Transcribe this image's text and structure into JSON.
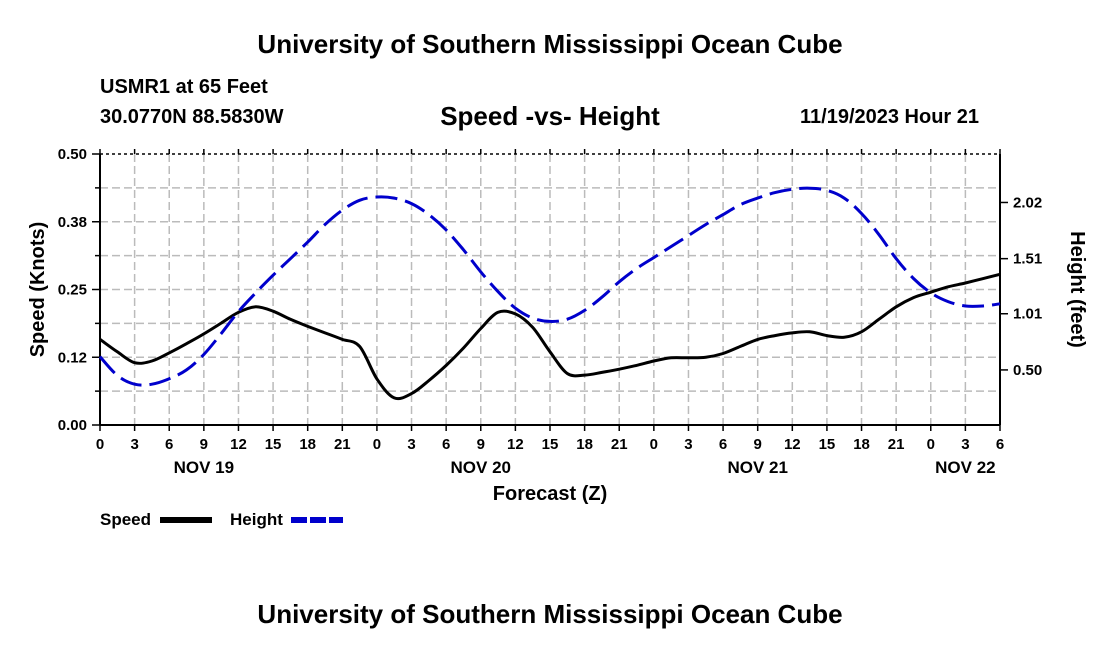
{
  "page": {
    "title": "University of Southern Mississippi Ocean Cube",
    "footer_title": "University of Southern Mississippi Ocean Cube",
    "station": "USMR1 at 65 Feet",
    "coordinates": "30.0770N  88.5830W",
    "subtitle": "Speed -vs- Height",
    "datetime": "11/19/2023 Hour 21"
  },
  "chart_data": {
    "type": "line",
    "title": "Speed -vs- Height",
    "xlabel": "Forecast (Z)",
    "ylabel_left": "Speed (Knots)",
    "ylabel_right": "Height (feet)",
    "x_unit": "hours since NOV 19 00Z",
    "xlim": [
      0,
      78
    ],
    "ylim_left": [
      0,
      0.5
    ],
    "ylim_right": [
      0.0,
      2.46
    ],
    "x_ticks": [
      0,
      3,
      6,
      9,
      12,
      15,
      18,
      21,
      24,
      27,
      30,
      33,
      36,
      39,
      42,
      45,
      48,
      51,
      54,
      57,
      60,
      63,
      66,
      69,
      72,
      75,
      78
    ],
    "x_tick_labels": [
      "0",
      "3",
      "6",
      "9",
      "12",
      "15",
      "18",
      "21",
      "0",
      "3",
      "6",
      "9",
      "12",
      "15",
      "18",
      "21",
      "0",
      "3",
      "6",
      "9",
      "12",
      "15",
      "18",
      "21",
      "0",
      "3",
      "6"
    ],
    "left_ticks": [
      0.0,
      0.125,
      0.25,
      0.375,
      0.5
    ],
    "left_tick_labels": [
      "0.00",
      "0.12",
      "0.25",
      "0.38",
      "0.50"
    ],
    "right_ticks": [
      0.5,
      1.01,
      1.51,
      2.02
    ],
    "right_tick_labels": [
      "0.50",
      "1.01",
      "1.51",
      "2.02"
    ],
    "date_labels": [
      {
        "x": 9,
        "label": "NOV 19"
      },
      {
        "x": 33,
        "label": "NOV 20"
      },
      {
        "x": 57,
        "label": "NOV 21"
      },
      {
        "x": 75,
        "label": "NOV 22"
      }
    ],
    "grid": true,
    "legend_position": "bottom-left",
    "series": [
      {
        "name": "Speed",
        "axis": "left",
        "color": "#000000",
        "style": "solid",
        "x": [
          0,
          1.5,
          3,
          4.5,
          6,
          7.5,
          9,
          10.5,
          12,
          13.5,
          15,
          16.5,
          18,
          19.5,
          21,
          22.5,
          24,
          25.5,
          27,
          28.5,
          30,
          31.5,
          33,
          34.5,
          36,
          37.5,
          39,
          40.5,
          42,
          43.5,
          45,
          46.5,
          48,
          49.5,
          51,
          52.5,
          54,
          55.5,
          57,
          58.5,
          60,
          61.5,
          63,
          64.5,
          66,
          67.5,
          69,
          70.5,
          72,
          73.5,
          75,
          76.5,
          78
        ],
        "values": [
          0.158,
          0.135,
          0.115,
          0.118,
          0.133,
          0.15,
          0.168,
          0.188,
          0.208,
          0.218,
          0.21,
          0.195,
          0.182,
          0.17,
          0.158,
          0.145,
          0.085,
          0.05,
          0.058,
          0.082,
          0.11,
          0.142,
          0.178,
          0.208,
          0.205,
          0.18,
          0.135,
          0.095,
          0.092,
          0.097,
          0.103,
          0.11,
          0.118,
          0.124,
          0.124,
          0.125,
          0.132,
          0.145,
          0.158,
          0.165,
          0.17,
          0.172,
          0.165,
          0.162,
          0.172,
          0.195,
          0.218,
          0.235,
          0.245,
          0.255,
          0.262,
          0.27,
          0.278
        ]
      },
      {
        "name": "Height",
        "axis": "right",
        "color": "#0000cc",
        "style": "dashed",
        "x": [
          0,
          1.5,
          3,
          4.5,
          6,
          7.5,
          9,
          10.5,
          12,
          13.5,
          15,
          16.5,
          18,
          19.5,
          21,
          22.5,
          24,
          25.5,
          27,
          28.5,
          30,
          31.5,
          33,
          34.5,
          36,
          37.5,
          39,
          40.5,
          42,
          43.5,
          45,
          46.5,
          48,
          49.5,
          51,
          52.5,
          54,
          55.5,
          57,
          58.5,
          60,
          61.5,
          63,
          64.5,
          66,
          67.5,
          69,
          70.5,
          72,
          73.5,
          75,
          76.5,
          78
        ],
        "values": [
          0.62,
          0.45,
          0.37,
          0.37,
          0.42,
          0.5,
          0.64,
          0.83,
          1.03,
          1.2,
          1.36,
          1.51,
          1.66,
          1.82,
          1.95,
          2.04,
          2.07,
          2.06,
          2.01,
          1.91,
          1.77,
          1.59,
          1.39,
          1.21,
          1.06,
          0.97,
          0.94,
          0.96,
          1.04,
          1.16,
          1.3,
          1.42,
          1.52,
          1.62,
          1.72,
          1.82,
          1.91,
          2.0,
          2.06,
          2.11,
          2.14,
          2.15,
          2.13,
          2.06,
          1.92,
          1.73,
          1.51,
          1.33,
          1.2,
          1.12,
          1.08,
          1.08,
          1.1
        ]
      }
    ]
  },
  "legend": {
    "speed_label": "Speed",
    "height_label": "Height",
    "speed_color": "#000000",
    "height_color": "#0000cc"
  }
}
